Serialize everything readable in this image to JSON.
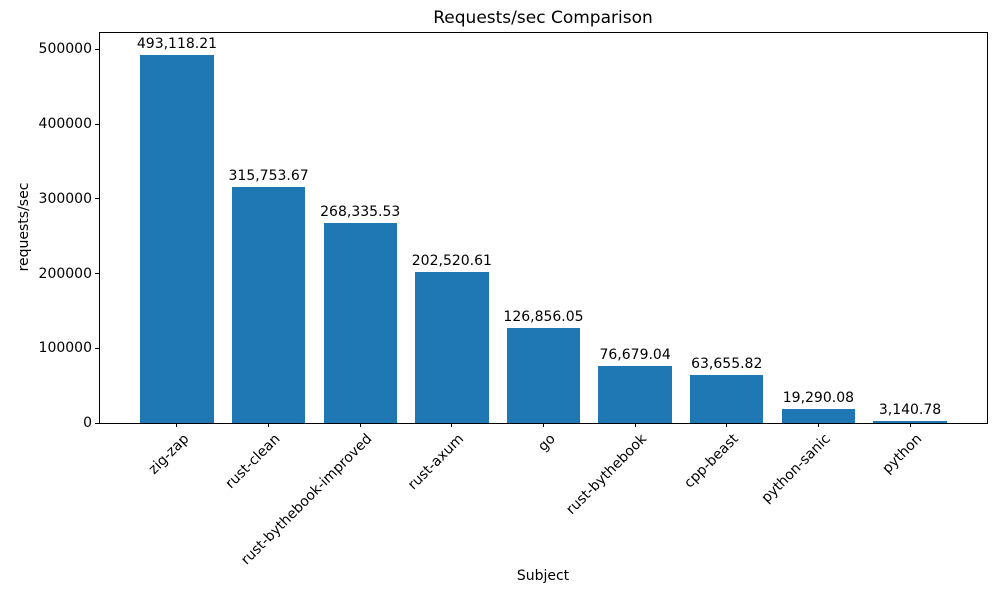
{
  "chart_data": {
    "type": "bar",
    "title": "Requests/sec Comparison",
    "xlabel": "Subject",
    "ylabel": "requests/sec",
    "categories": [
      "zig-zap",
      "rust-clean",
      "rust-bythebook-improved",
      "rust-axum",
      "go",
      "rust-bythebook",
      "cpp-beast",
      "python-sanic",
      "python"
    ],
    "values": [
      493118.21,
      315753.67,
      268335.53,
      202520.61,
      126856.05,
      76679.04,
      63655.82,
      19290.08,
      3140.78
    ],
    "value_labels": [
      "493,118.21",
      "315,753.67",
      "268,335.53",
      "202,520.61",
      "126,856.05",
      "76,679.04",
      "63,655.82",
      "19,290.08",
      "3,140.78"
    ],
    "yticks": [
      0,
      100000,
      200000,
      300000,
      400000,
      500000
    ],
    "ytick_labels": [
      "0",
      "100000",
      "200000",
      "300000",
      "400000",
      "500000"
    ],
    "ylim": [
      0,
      522000
    ],
    "bar_color": "#1f77b4",
    "text_color": "#000000",
    "grid": false,
    "legend": "none",
    "x_tick_rotation_deg": 45
  }
}
